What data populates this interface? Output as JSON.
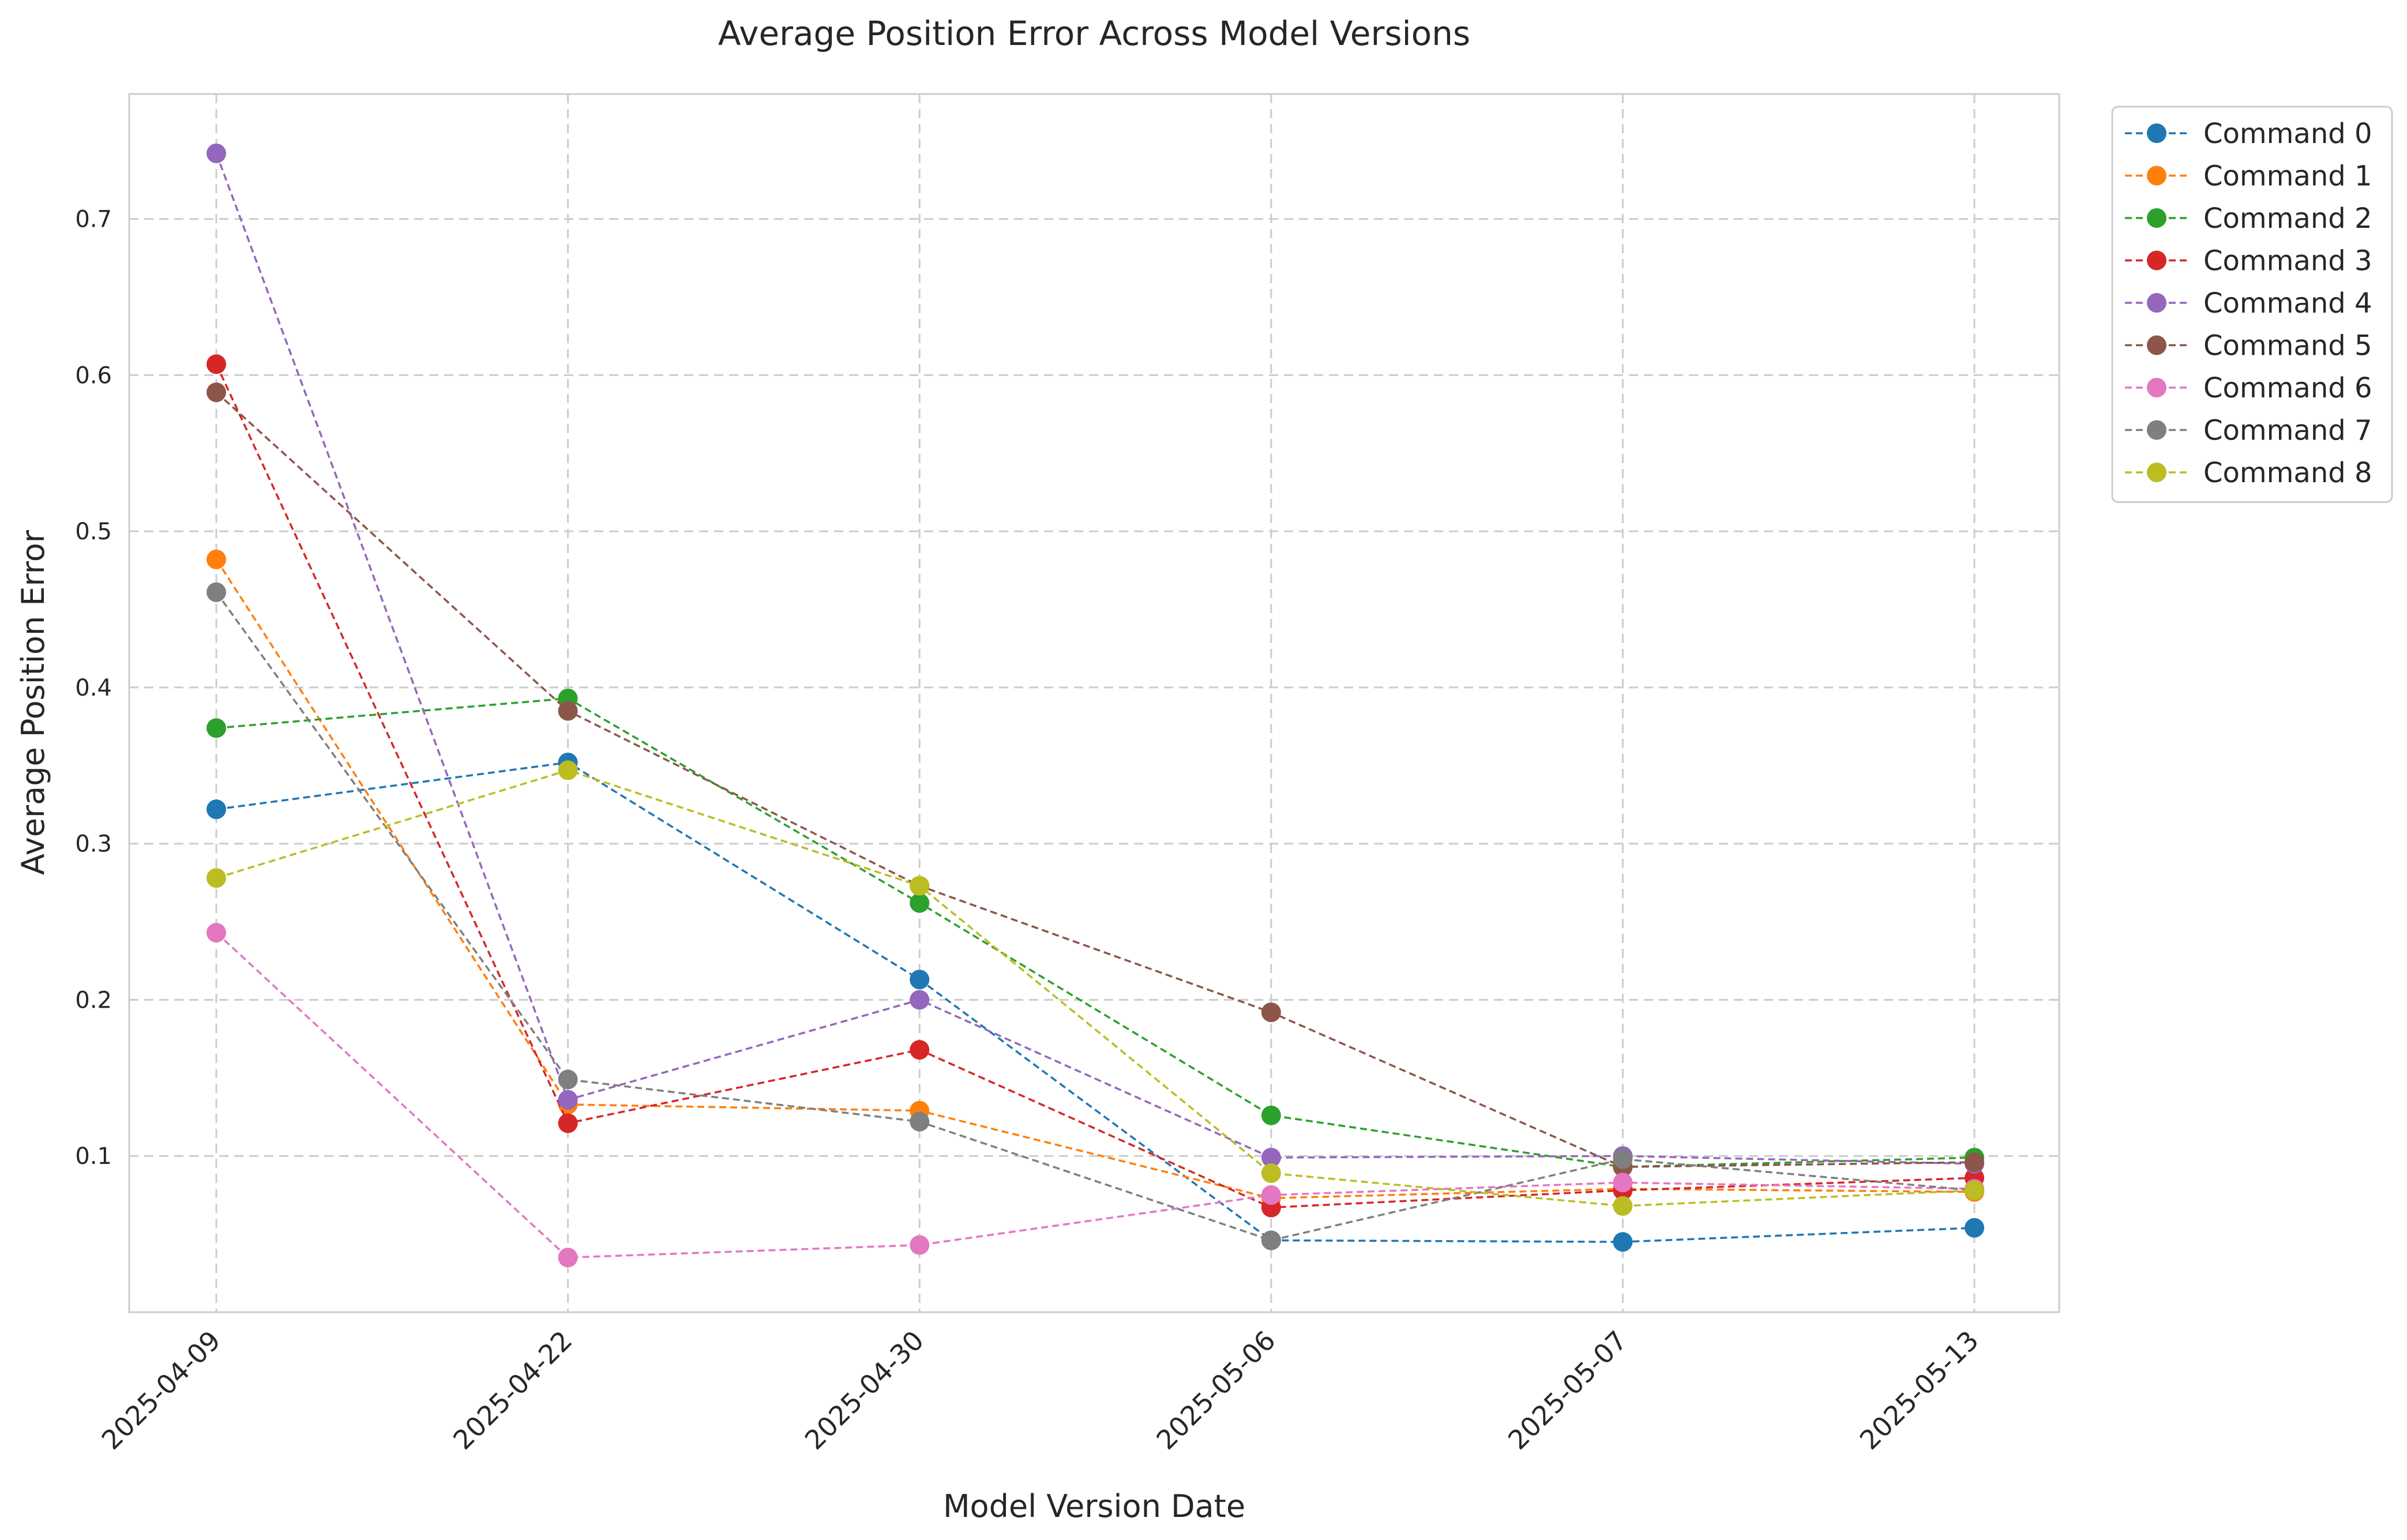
{
  "chart_data": {
    "type": "line",
    "title": "Average Position Error Across Model Versions",
    "xlabel": "Model Version Date",
    "ylabel": "Average Position Error",
    "categories": [
      "2025-04-09",
      "2025-04-22",
      "2025-04-30",
      "2025-05-06",
      "2025-05-07",
      "2025-05-13"
    ],
    "ylim": [
      0.0,
      0.78
    ],
    "yticks": [
      "0.1",
      "0.2",
      "0.3",
      "0.4",
      "0.5",
      "0.6",
      "0.7"
    ],
    "grid": true,
    "line_style": "dashed",
    "marker": "circle",
    "legend_position": "outside-top-right",
    "series": [
      {
        "name": "Command 0",
        "color": "#1f77b4",
        "values": [
          0.322,
          0.352,
          0.213,
          0.046,
          0.045,
          0.054
        ]
      },
      {
        "name": "Command 1",
        "color": "#ff7f0e",
        "values": [
          0.482,
          0.133,
          0.129,
          0.073,
          0.079,
          0.077
        ]
      },
      {
        "name": "Command 2",
        "color": "#2ca02c",
        "values": [
          0.374,
          0.393,
          0.262,
          0.126,
          0.093,
          0.099
        ]
      },
      {
        "name": "Command 3",
        "color": "#d62728",
        "values": [
          0.607,
          0.121,
          0.168,
          0.067,
          0.078,
          0.086
        ]
      },
      {
        "name": "Command 4",
        "color": "#9467bd",
        "values": [
          0.742,
          0.136,
          0.2,
          0.099,
          0.1,
          0.095
        ]
      },
      {
        "name": "Command 5",
        "color": "#8c564b",
        "values": [
          0.589,
          0.385,
          0.273,
          0.192,
          0.093,
          0.096
        ]
      },
      {
        "name": "Command 6",
        "color": "#e377c2",
        "values": [
          0.243,
          0.035,
          0.043,
          0.075,
          0.083,
          0.079
        ]
      },
      {
        "name": "Command 7",
        "color": "#7f7f7f",
        "values": [
          0.461,
          0.149,
          0.122,
          0.046,
          0.098,
          0.078
        ]
      },
      {
        "name": "Command 8",
        "color": "#bcbd22",
        "values": [
          0.278,
          0.347,
          0.273,
          0.089,
          0.068,
          0.078
        ]
      }
    ]
  }
}
